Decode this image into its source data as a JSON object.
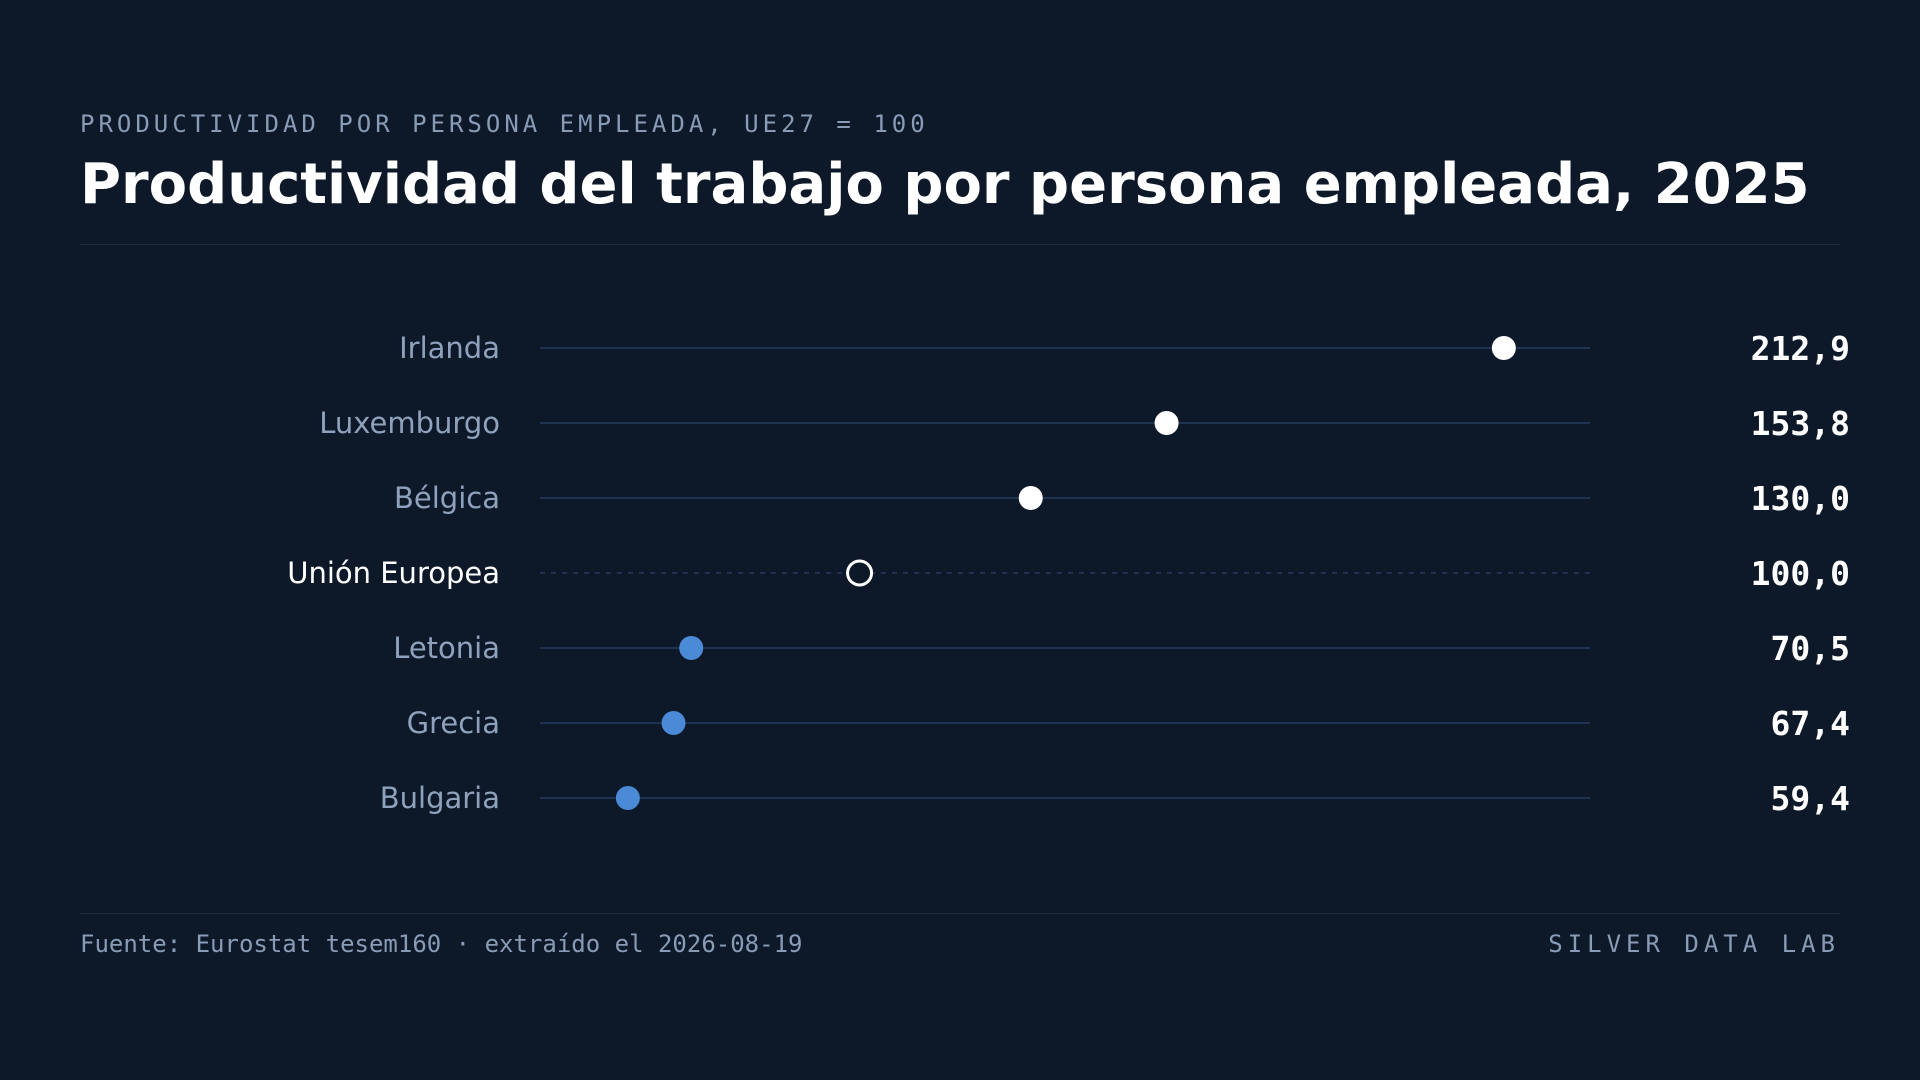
{
  "header": {
    "eyebrow": "PRODUCTIVIDAD POR PERSONA EMPLEADA, UE27 = 100",
    "title": "Productividad del trabajo por persona empleada, 2025"
  },
  "chart_data": {
    "type": "dot",
    "title": "Productividad del trabajo por persona empleada, 2025",
    "subtitle": "PRODUCTIVIDAD POR PERSONA EMPLEADA, UE27 = 100",
    "categories": [
      "Irlanda",
      "Luxemburgo",
      "Bélgica",
      "Unión Europea",
      "Letonia",
      "Grecia",
      "Bulgaria"
    ],
    "values": [
      212.9,
      153.8,
      130.0,
      100.0,
      70.5,
      67.4,
      59.4
    ],
    "value_labels": [
      "212,9",
      "153,8",
      "130,0",
      "100,0",
      "70,5",
      "67,4",
      "59,4"
    ],
    "groups": [
      "above",
      "above",
      "above",
      "reference",
      "below",
      "below",
      "below"
    ],
    "xlim": [
      44,
      228
    ],
    "grid": false,
    "colors": {
      "above": "#ffffff",
      "reference": "#ffffff",
      "below": "#4a8ad6",
      "track": "#1f3350",
      "label": "#8fa1bb",
      "reference_label": "#ffffff",
      "value": "#ffffff"
    }
  },
  "footer": {
    "source": "Fuente: Eurostat tesem160 · extraído el 2026-08-19",
    "brand": "SILVER DATA LAB"
  }
}
